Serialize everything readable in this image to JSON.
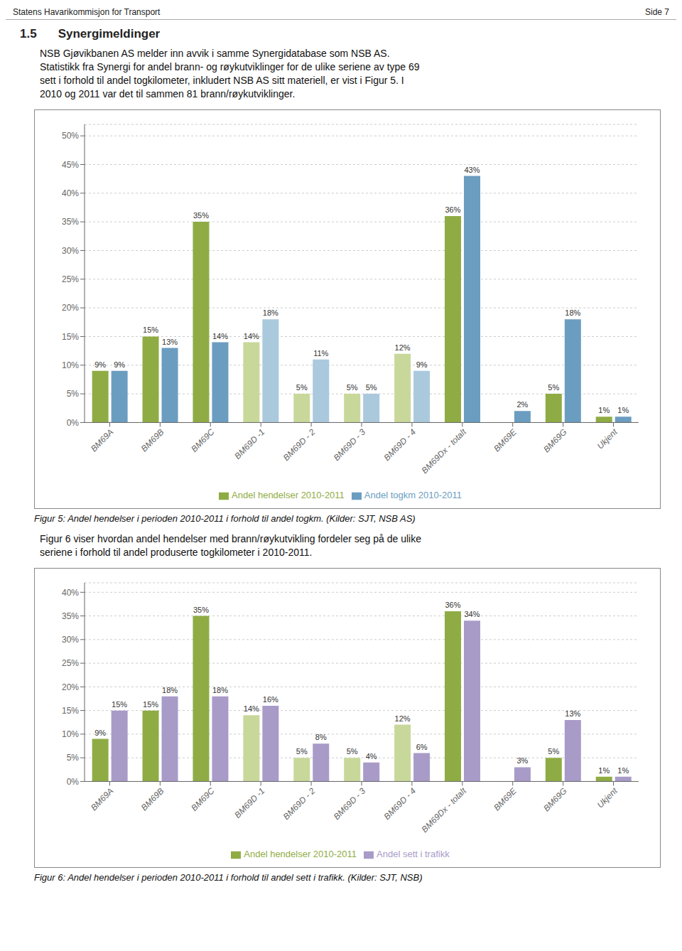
{
  "chart_data": [
    {
      "type": "bar",
      "title": "Figur 5: Andel hendelser i perioden 2010-2011 i forhold til andel togkm. (Kilder: SJT, NSB AS)",
      "annotations": [
        "Statens Havarikommisjon for Transport",
        "Side 7",
        "1.5",
        "Synergimeldinger",
        "NSB Gjøvikbanen AS melder inn avvik i samme Synergidatabase som NSB AS.",
        "Statistikk fra Synergi for andel brann- og røykutviklinger for de ulike seriene av type 69",
        "sett i forhold til andel togkilometer, inkludert NSB AS sitt materiell, er vist i Figur 5. I",
        "2010 og 2011 var det til sammen 81 brann/røykutviklinger."
      ],
      "categories": [
        "BM69A",
        "BM69B",
        "BM69C",
        "BM69D -1",
        "BM69D - 2",
        "BM69D - 3",
        "BM69D - 4",
        "BM69Dx - totalt",
        "BM69E",
        "BM69G",
        "Ukjent"
      ],
      "series": [
        {
          "name": "Andel hendelser 2010-2011",
          "color": "#8fac44",
          "colors": [
            "#8fac44",
            "#8fac44",
            "#8fac44",
            "#c8d89a",
            "#c8d89a",
            "#c8d89a",
            "#c8d89a",
            "#8fac44",
            "#8fac44",
            "#8fac44",
            "#8fac44"
          ],
          "values": [
            9,
            15,
            35,
            14,
            5,
            5,
            12,
            36,
            0,
            5,
            1
          ],
          "value_labels": [
            "9%",
            "15%",
            "35%",
            "14%",
            "5%",
            "5%",
            "12%",
            "36%",
            null,
            "5%",
            "1%"
          ]
        },
        {
          "name": "Andel togkm 2010-2011",
          "color": "#6b9dc0",
          "colors": [
            "#6b9dc0",
            "#6b9dc0",
            "#6b9dc0",
            "#aac9dd",
            "#aac9dd",
            "#aac9dd",
            "#aac9dd",
            "#6b9dc0",
            "#6b9dc0",
            "#6b9dc0",
            "#6b9dc0"
          ],
          "values": [
            9,
            13,
            14,
            18,
            11,
            5,
            9,
            43,
            2,
            18,
            1
          ],
          "value_labels": [
            "9%",
            "13%",
            "14%",
            "18%",
            "11%",
            "5%",
            "9%",
            "43%",
            "2%",
            "18%",
            "1%"
          ]
        }
      ],
      "ylim": [
        0,
        52
      ],
      "yticks": [
        {
          "value": 0,
          "label": "0%"
        },
        {
          "value": 5,
          "label": "5%"
        },
        {
          "value": 10,
          "label": "10%"
        },
        {
          "value": 15,
          "label": "15%"
        },
        {
          "value": 20,
          "label": "20%"
        },
        {
          "value": 25,
          "label": "25%"
        },
        {
          "value": 30,
          "label": "30%"
        },
        {
          "value": 35,
          "label": "35%"
        },
        {
          "value": 40,
          "label": "40%"
        },
        {
          "value": 45,
          "label": "45%"
        },
        {
          "value": 50,
          "label": "50%"
        }
      ],
      "grid": true,
      "legend": "bottom",
      "data_labels": true
    },
    {
      "type": "bar",
      "title": "Figur 6: Andel hendelser i perioden 2010-2011 i forhold til andel sett i trafikk. (Kilder: SJT, NSB)",
      "annotations": [
        "Figur 6 viser hvordan andel hendelser med brann/røykutvikling fordeler seg på de ulike",
        "seriene i forhold til andel produserte togkilometer i 2010-2011."
      ],
      "categories": [
        "BM69A",
        "BM69B",
        "BM69C",
        "BM69D -1",
        "BM69D - 2",
        "BM69D - 3",
        "BM69D - 4",
        "BM69Dx - totalt",
        "BM69E",
        "BM69G",
        "Ukjent"
      ],
      "series": [
        {
          "name": "Andel hendelser 2010-2011",
          "color": "#8fac44",
          "colors": [
            "#8fac44",
            "#8fac44",
            "#8fac44",
            "#c8d89a",
            "#c8d89a",
            "#c8d89a",
            "#c8d89a",
            "#8fac44",
            "#8fac44",
            "#8fac44",
            "#8fac44"
          ],
          "values": [
            9,
            15,
            35,
            14,
            5,
            5,
            12,
            36,
            0,
            5,
            1
          ],
          "value_labels": [
            "9%",
            "15%",
            "35%",
            "14%",
            "5%",
            "5%",
            "12%",
            "36%",
            null,
            "5%",
            "1%"
          ]
        },
        {
          "name": "Andel sett i trafikk",
          "color": "#a99bc8",
          "values": [
            15,
            18,
            18,
            16,
            8,
            4,
            6,
            34,
            3,
            13,
            1
          ],
          "value_labels": [
            "15%",
            "18%",
            "18%",
            "16%",
            "8%",
            "4%",
            "6%",
            "34%",
            "3%",
            "13%",
            "1%"
          ]
        }
      ],
      "ylim": [
        0,
        42
      ],
      "yticks": [
        {
          "value": 0,
          "label": "0%"
        },
        {
          "value": 5,
          "label": "5%"
        },
        {
          "value": 10,
          "label": "10%"
        },
        {
          "value": 15,
          "label": "15%"
        },
        {
          "value": 20,
          "label": "20%"
        },
        {
          "value": 25,
          "label": "25%"
        },
        {
          "value": 30,
          "label": "30%"
        },
        {
          "value": 35,
          "label": "35%"
        },
        {
          "value": 40,
          "label": "40%"
        }
      ],
      "grid": true,
      "legend": "bottom",
      "data_labels": true
    }
  ]
}
